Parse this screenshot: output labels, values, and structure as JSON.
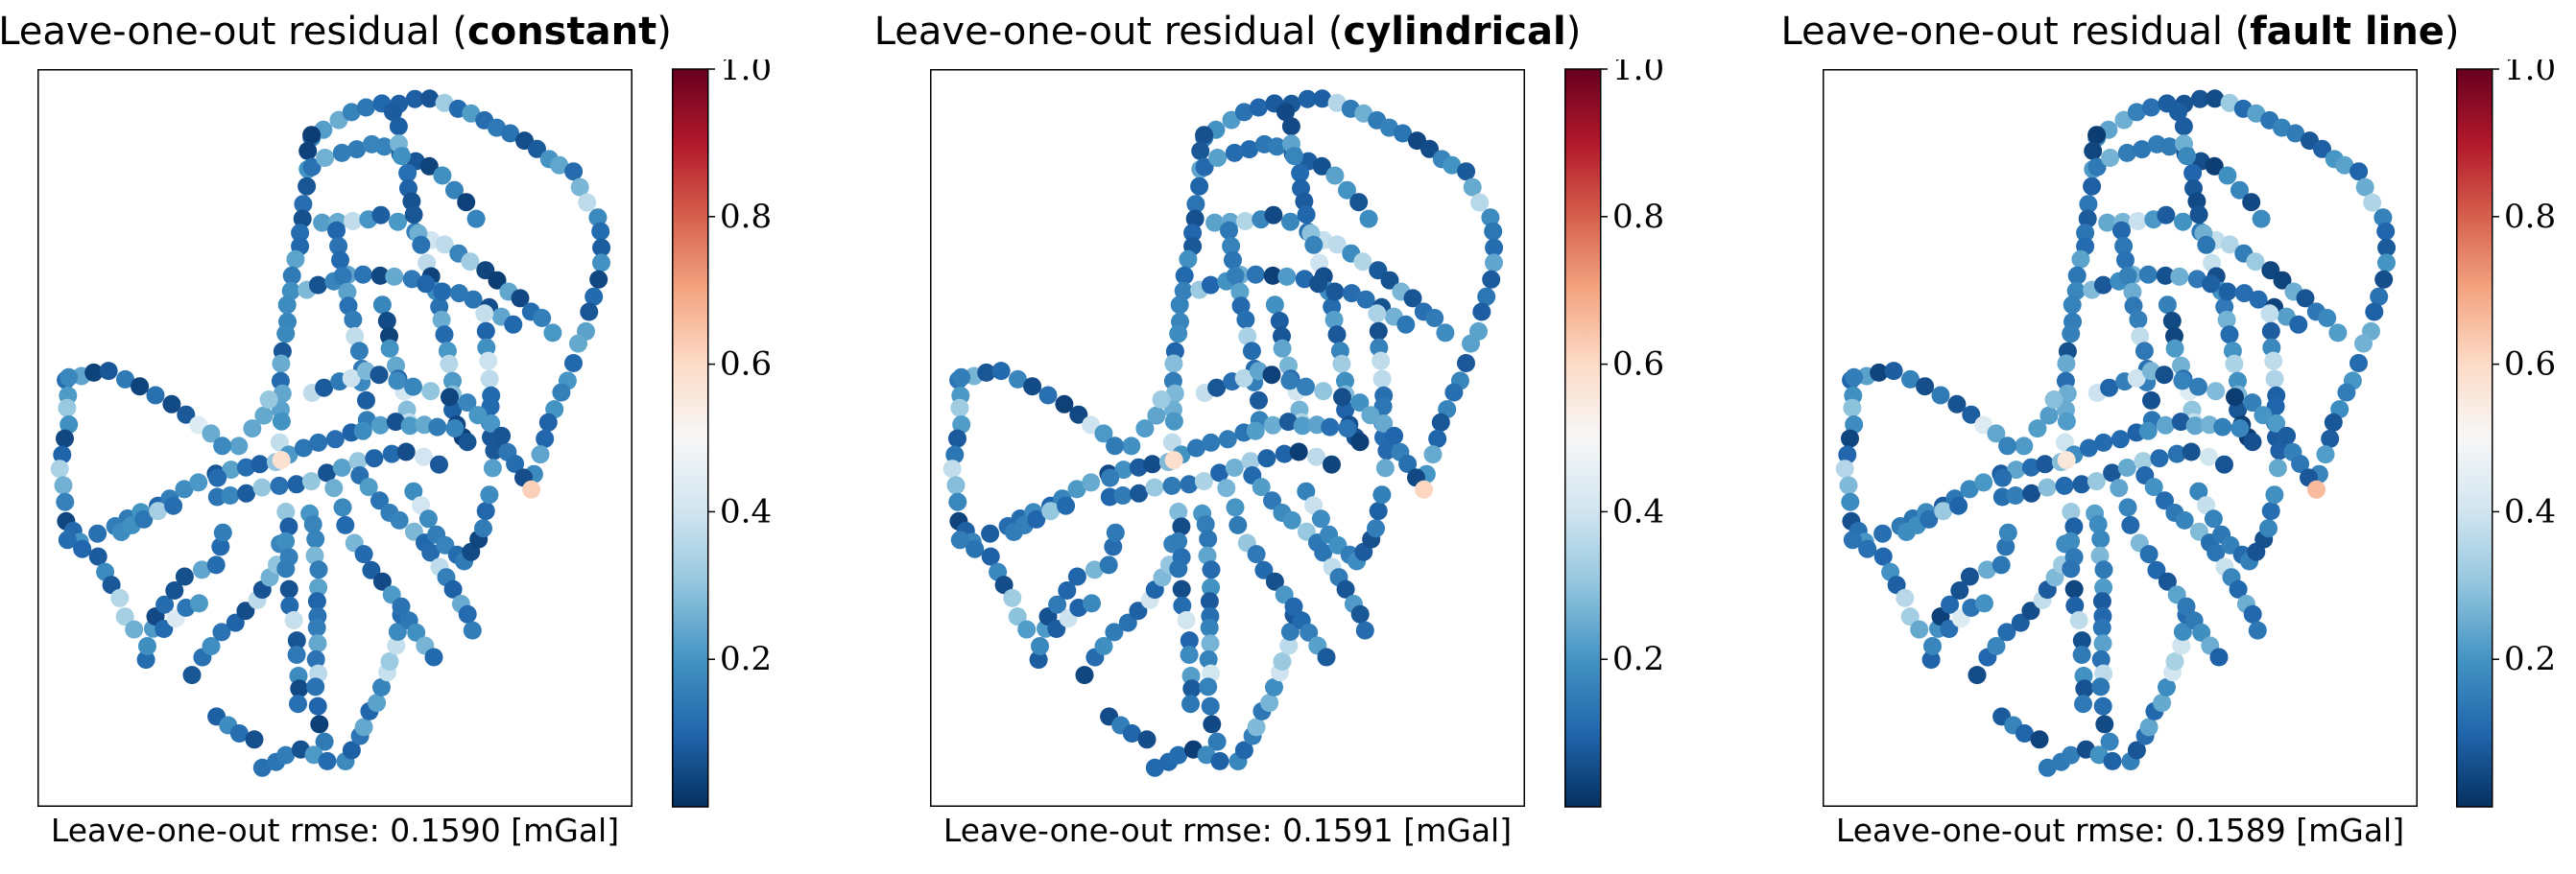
{
  "colors": {
    "low": "#053061",
    "mid": "#f7f7f7",
    "high": "#67001f",
    "scale": "RdBu_r"
  },
  "chart_data": [
    {
      "type": "scatter",
      "title_prefix": "Leave-one-out residual (",
      "title_bold": "constant",
      "title_suffix": ")",
      "footer": "Leave-one-out rmse: 0.1590 [mGal]",
      "colorbar": {
        "range": [
          0.0,
          1.0
        ],
        "ticks": [
          "1.0",
          "0.8",
          "0.6",
          "0.4",
          "0.2"
        ],
        "tick_values": [
          1.0,
          0.8,
          0.6,
          0.4,
          0.2
        ]
      },
      "axes_ticks_visible": false,
      "grid": false,
      "highlights": [
        {
          "x": 0.83,
          "y": 0.57,
          "value": 0.62
        },
        {
          "x": 0.41,
          "y": 0.53,
          "value": 0.58
        }
      ]
    },
    {
      "type": "scatter",
      "title_prefix": "Leave-one-out residual (",
      "title_bold": "cylindrical",
      "title_suffix": ")",
      "footer": "Leave-one-out rmse: 0.1591 [mGal]",
      "colorbar": {
        "range": [
          0.0,
          1.0
        ],
        "ticks": [
          "1.0",
          "0.8",
          "0.6",
          "0.4",
          "0.2"
        ],
        "tick_values": [
          1.0,
          0.8,
          0.6,
          0.4,
          0.2
        ]
      },
      "axes_ticks_visible": false,
      "grid": false,
      "highlights": [
        {
          "x": 0.83,
          "y": 0.57,
          "value": 0.61
        },
        {
          "x": 0.41,
          "y": 0.53,
          "value": 0.59
        }
      ]
    },
    {
      "type": "scatter",
      "title_prefix": "Leave-one-out residual (",
      "title_bold": "fault line",
      "title_suffix": ")",
      "footer": "Leave-one-out rmse: 0.1589 [mGal]",
      "colorbar": {
        "range": [
          0.0,
          1.0
        ],
        "ticks": [
          "1.0",
          "0.8",
          "0.6",
          "0.4",
          "0.2"
        ],
        "tick_values": [
          1.0,
          0.8,
          0.6,
          0.4,
          0.2
        ]
      },
      "axes_ticks_visible": false,
      "grid": false,
      "highlights": [
        {
          "x": 0.83,
          "y": 0.57,
          "value": 0.66
        },
        {
          "x": 0.41,
          "y": 0.53,
          "value": 0.56
        }
      ]
    }
  ]
}
